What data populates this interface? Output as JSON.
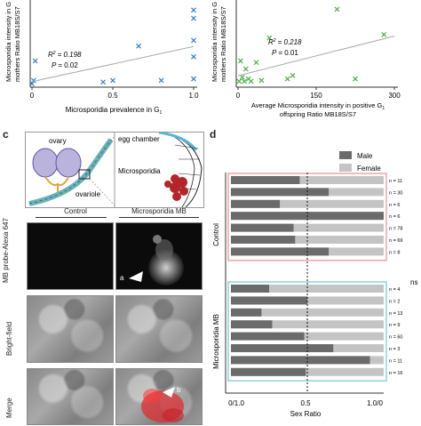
{
  "panel_a": {
    "ylabel_lines": [
      "Microsporidia intensity in G",
      "mothers Ratio MB18S/S7"
    ],
    "xlabel": "Microsporidia prevalence in G",
    "xlabel_sub": "1",
    "x_ticks": [
      "0",
      "0.5",
      "1.0"
    ],
    "r2_label": "R",
    "r2_value": "= 0.198",
    "p_label": "P",
    "p_value": "= 0.02"
  },
  "panel_b": {
    "ylabel_lines": [
      "Microsporidia intensity in G",
      "mothers Ratio MB18S/S7"
    ],
    "xlabel_lines": [
      "Average Microsporidia intensity in positive G",
      "offspring Ratio MB18S/S7"
    ],
    "xlabel_sub": "1",
    "x_ticks": [
      "0",
      "150",
      "300"
    ],
    "r2_label": "R",
    "r2_value": "= 0.218",
    "p_label": "P",
    "p_value": "= 0.01"
  },
  "panel_c": {
    "letter": "c",
    "diagram_labels": [
      "ovary",
      "ovariole",
      "egg chamber",
      "Microsporidia"
    ],
    "col_headers": [
      "Control",
      "Microsporidia MB"
    ],
    "row_labels": [
      "MB probe-Alexa 647",
      "Bright-field",
      "Merge"
    ],
    "arrow_labels": [
      "a",
      "b"
    ]
  },
  "panel_d": {
    "letter": "d",
    "legend": [
      "Male",
      "Female"
    ],
    "group_labels": [
      "Control",
      "Microsporidia MB"
    ],
    "ns_label": "ns",
    "x_ticks": [
      "0/1.0",
      "0.5",
      "1.0/0"
    ],
    "xlabel": "Sex Ratio",
    "colors": {
      "male": "#6b6b6b",
      "female": "#c4c4c4",
      "control_border": "#f2a4a4",
      "mb_border": "#8fd3dc"
    }
  },
  "chart_data": [
    {
      "type": "scatter",
      "xlabel": "Microsporidia prevalence in G1",
      "ylabel": "Microsporidia intensity in G0 mothers Ratio MB18S/S7",
      "annotations": [
        "R2 = 0.198",
        "P = 0.02"
      ],
      "x": [
        0.0,
        0.01,
        0.02,
        0.44,
        0.5,
        0.8,
        1.0,
        1.0,
        1.0,
        1.0,
        1.0,
        0.66
      ],
      "y": [
        0.02,
        0.06,
        0.3,
        0.04,
        0.06,
        0.06,
        0.08,
        0.35,
        0.55,
        0.82,
        0.92,
        0.48
      ],
      "color": "#3a7fc8",
      "marker": "x"
    },
    {
      "type": "scatter",
      "xlabel": "Average Microsporidia intensity in positive G1 offspring Ratio MB18S/S7",
      "ylabel": "Microsporidia intensity in G0 mothers Ratio MB18S/S7",
      "annotations": [
        "R2 = 0.218",
        "P = 0.01"
      ],
      "x": [
        2,
        5,
        8,
        12,
        15,
        20,
        25,
        35,
        45,
        60,
        95,
        105,
        190,
        225,
        280
      ],
      "y": [
        0.05,
        0.3,
        0.1,
        0.05,
        0.2,
        0.08,
        0.05,
        0.28,
        0.06,
        0.58,
        0.08,
        0.12,
        0.93,
        0.08,
        0.62
      ],
      "color": "#4daf4a",
      "marker": "x"
    },
    {
      "type": "bar",
      "orientation": "horizontal-stacked",
      "xlabel": "Sex Ratio",
      "series": [
        {
          "name": "Male"
        },
        {
          "name": "Female"
        }
      ],
      "groups": [
        {
          "name": "Control",
          "n_labels": [
            "n = 11",
            "n = 30",
            "n = 6",
            "n = 6",
            "n = 78",
            "n = 69",
            "n = 8"
          ],
          "male_fraction": [
            0.45,
            0.64,
            0.32,
            1.0,
            0.41,
            0.42,
            0.64
          ]
        },
        {
          "name": "Microsporidia MB",
          "n_labels": [
            "n = 4",
            "n = 2",
            "n = 13",
            "n = 9",
            "n = 60",
            "n = 3",
            "n = 11",
            "n = 16"
          ],
          "male_fraction": [
            0.25,
            0.5,
            0.2,
            0.27,
            0.48,
            0.67,
            0.91,
            0.49
          ]
        }
      ],
      "reference_line": 0.5
    }
  ]
}
